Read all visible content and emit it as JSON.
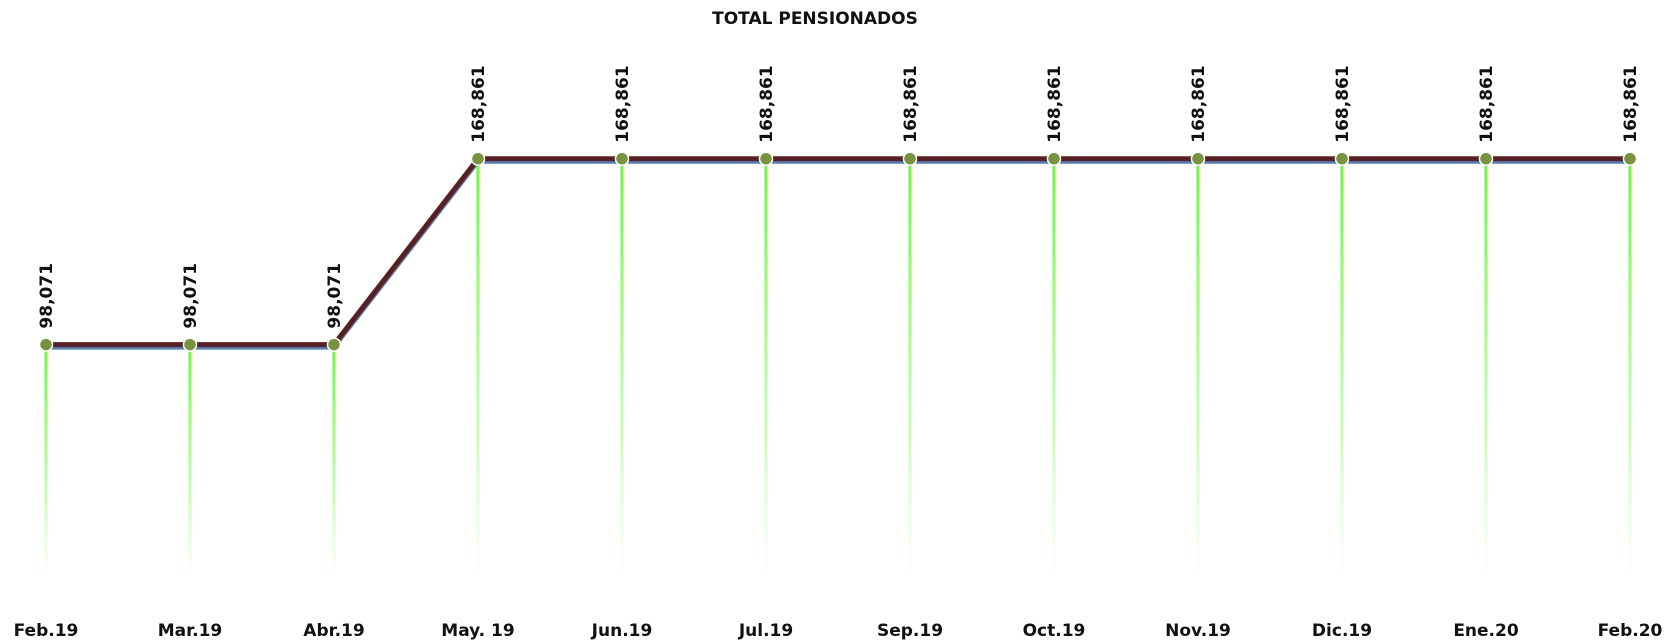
{
  "chart_data": {
    "type": "line",
    "title": "TOTAL PENSIONADOS",
    "categories": [
      "Feb.19",
      "Mar.19",
      "Abr.19",
      "May. 19",
      "Jun.19",
      "Jul.19",
      "Sep.19",
      "Oct.19",
      "Nov.19",
      "Dic.19",
      "Ene.20",
      "Feb.20"
    ],
    "values": [
      98071,
      98071,
      98071,
      168861,
      168861,
      168861,
      168861,
      168861,
      168861,
      168861,
      168861,
      168861
    ],
    "value_labels": [
      "98,071",
      "98,071",
      "98,071",
      "168,861",
      "168,861",
      "168,861",
      "168,861",
      "168,861",
      "168,861",
      "168,861",
      "168,861",
      "168,861"
    ],
    "color": "#5c1f1f",
    "marker_color": "#77933c",
    "drop_line_color": "#66ff33",
    "ylim": [
      0,
      200000
    ]
  }
}
